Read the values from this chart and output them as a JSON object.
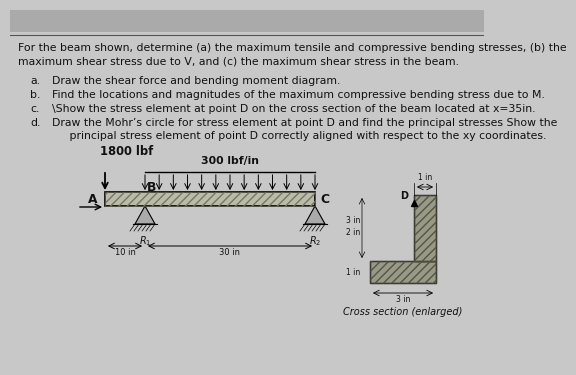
{
  "bg_color": "#c8c8c8",
  "paper_color": "#eeece6",
  "title_line1": "For the beam shown, determine (a) the maximum tensile and compressive bending stresses, (b) the",
  "title_line2": "maximum shear stress due to V, and (c) the maximum shear stress in the beam.",
  "items": [
    [
      "a.",
      "Draw the shear force and bending moment diagram."
    ],
    [
      "b.",
      "Find the locations and magnitudes of the maximum compressive bending stress due to M."
    ],
    [
      "c.",
      "\\Show the stress element at point D on the cross section of the beam located at x=35in."
    ],
    [
      "d.",
      "Draw the Mohr’s circle for stress element at point D and find the principal stresses Show the"
    ]
  ],
  "item_d_line2": "     principal stress element of point D correctly aligned with respect to the xy coordinates.",
  "load_label": "1800 lbf",
  "distributed_label": "300 lbf/in",
  "dim_10": "← 10 in →",
  "dim_30": "←———— 30 in ————→",
  "cross_section_label": "Cross section (enlarged)",
  "R1": "R₁",
  "R2": "R₂",
  "point_D": "D",
  "beam_color": "#bbbbaa",
  "support_color": "#aaaaaa",
  "cs_hatch_color": "#888877",
  "text_color": "#111111"
}
